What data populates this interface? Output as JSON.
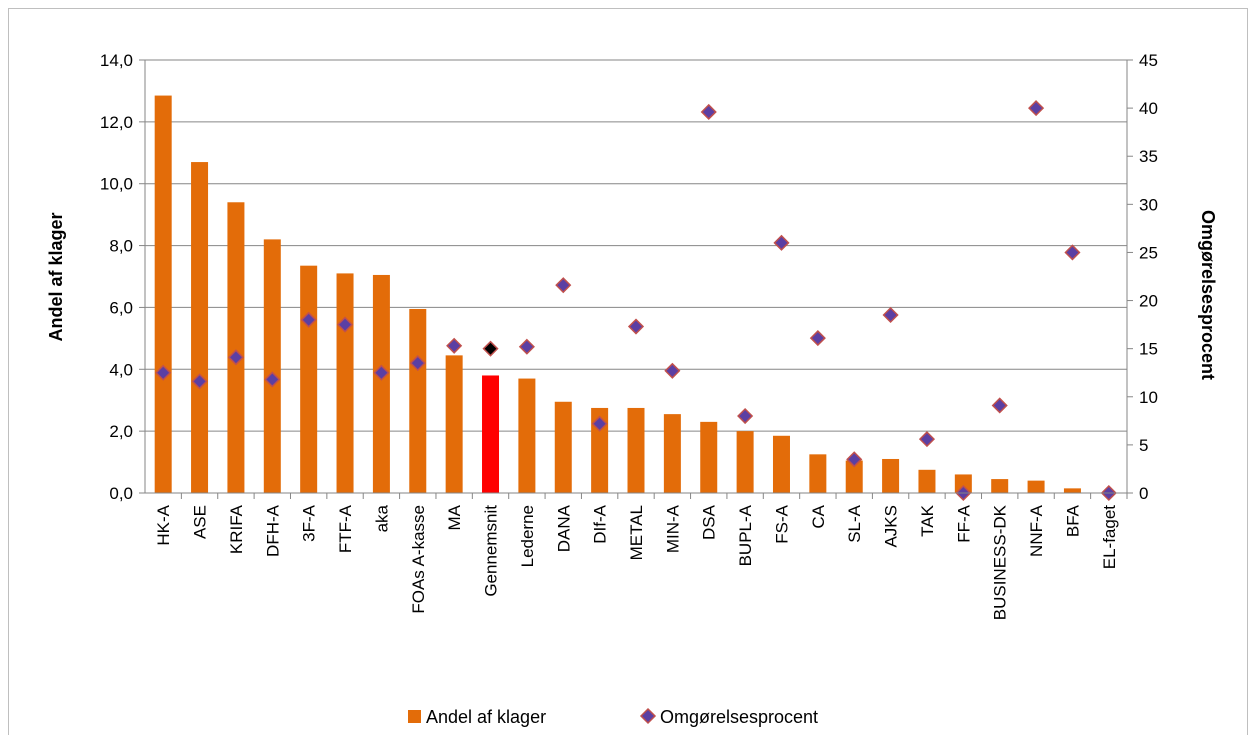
{
  "chart_data": {
    "type": "bar",
    "title": "",
    "categories": [
      "HK-A",
      "ASE",
      "KRIFA",
      "DFH-A",
      "3F-A",
      "FTF-A",
      "aka",
      "FOAs A-kasse",
      "MA",
      "Gennemsnit",
      "Lederne",
      "DANA",
      "DIf-A",
      "METAL",
      "MIN-A",
      "DSA",
      "BUPL-A",
      "FS-A",
      "CA",
      "SL-A",
      "AJKS",
      "TAK",
      "FF-A",
      "BUSINESS-DK",
      "NNF-A",
      "BFA",
      "EL-faget"
    ],
    "series": [
      {
        "name": "Andel af klager",
        "type": "bar",
        "axis": "left",
        "color": "#e36c09",
        "highlight": {
          "category": "Gennemsnit",
          "color": "#ff0000"
        },
        "values": [
          12.85,
          10.7,
          9.4,
          8.2,
          7.35,
          7.1,
          7.05,
          5.95,
          4.45,
          3.8,
          3.7,
          2.95,
          2.75,
          2.75,
          2.55,
          2.3,
          2.0,
          1.85,
          1.25,
          1.05,
          1.1,
          0.75,
          0.6,
          0.45,
          0.4,
          0.15,
          0.0
        ]
      },
      {
        "name": "Omgørelsesprocent",
        "type": "scatter",
        "axis": "right",
        "color": "#5b3fa3",
        "edge_color": "#c0504d",
        "highlight": {
          "category": "Gennemsnit",
          "color": "#000000"
        },
        "values": [
          12.5,
          11.6,
          14.1,
          11.8,
          18.0,
          17.5,
          12.5,
          13.5,
          15.3,
          15.0,
          15.2,
          21.6,
          7.2,
          17.3,
          12.7,
          39.6,
          8.0,
          26.0,
          16.1,
          3.5,
          18.5,
          5.6,
          0.0,
          9.1,
          40.0,
          25.0,
          0.0
        ]
      }
    ],
    "ylabel": "Andel af klager",
    "y2label": "Omgørelsesprocent",
    "ylim": [
      0,
      14
    ],
    "y2lim": [
      0,
      45
    ],
    "yticks": [
      "0,0",
      "2,0",
      "4,0",
      "6,0",
      "8,0",
      "10,0",
      "12,0",
      "14,0"
    ],
    "y2ticks": [
      "0",
      "5",
      "10",
      "15",
      "20",
      "25",
      "30",
      "35",
      "40",
      "45"
    ],
    "grid": true,
    "legend": "bottom"
  }
}
